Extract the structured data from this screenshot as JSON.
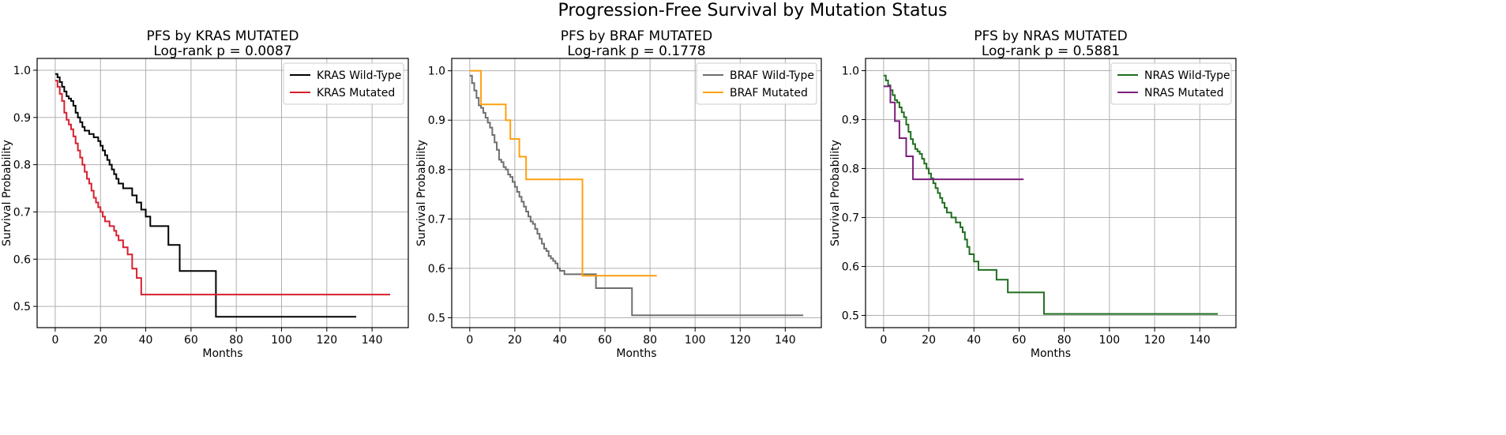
{
  "figure": {
    "suptitle": "Progression-Free Survival by Mutation Status"
  },
  "chart_data": [
    {
      "type": "line",
      "title": "PFS by KRAS MUTATED",
      "subtitle": "Log-rank p = 0.0087",
      "xlabel": "Months",
      "ylabel": "Survival Probability",
      "xlim": [
        -8,
        156
      ],
      "ylim": [
        0.455,
        1.025
      ],
      "xticks": [
        0,
        20,
        40,
        60,
        80,
        100,
        120,
        140
      ],
      "yticks": [
        0.5,
        0.6,
        0.7,
        0.8,
        0.9,
        1.0
      ],
      "ytick_labels": [
        "0.5",
        "0.6",
        "0.7",
        "0.8",
        "0.9",
        "1.0"
      ],
      "grid": true,
      "legend_position": "top-right",
      "series": [
        {
          "name": "KRAS Wild-Type",
          "color": "#000000",
          "x": [
            0,
            1,
            2,
            3,
            4,
            5,
            6,
            7,
            8,
            9,
            10,
            11,
            12,
            13,
            15,
            17,
            19,
            20,
            21,
            22,
            23,
            24,
            25,
            26,
            27,
            28,
            30,
            34,
            36,
            38,
            40,
            42,
            50,
            55,
            71,
            133
          ],
          "y": [
            0.992,
            0.985,
            0.975,
            0.965,
            0.955,
            0.945,
            0.94,
            0.935,
            0.925,
            0.91,
            0.9,
            0.89,
            0.88,
            0.872,
            0.865,
            0.858,
            0.85,
            0.84,
            0.83,
            0.82,
            0.81,
            0.8,
            0.79,
            0.78,
            0.77,
            0.76,
            0.75,
            0.735,
            0.72,
            0.705,
            0.69,
            0.67,
            0.63,
            0.575,
            0.478,
            0.478
          ]
        },
        {
          "name": "KRAS Mutated",
          "color": "#d6202f",
          "x": [
            0,
            1,
            2,
            3,
            4,
            5,
            6,
            7,
            8,
            9,
            10,
            11,
            12,
            13,
            14,
            15,
            16,
            17,
            18,
            19,
            20,
            21,
            22,
            24,
            26,
            27,
            28,
            30,
            32,
            34,
            36,
            38,
            148
          ],
          "y": [
            0.978,
            0.965,
            0.95,
            0.935,
            0.91,
            0.895,
            0.885,
            0.875,
            0.86,
            0.845,
            0.83,
            0.815,
            0.8,
            0.785,
            0.77,
            0.76,
            0.745,
            0.73,
            0.72,
            0.71,
            0.7,
            0.69,
            0.68,
            0.67,
            0.66,
            0.65,
            0.64,
            0.625,
            0.61,
            0.58,
            0.56,
            0.525,
            0.525
          ]
        }
      ]
    },
    {
      "type": "line",
      "title": "PFS by BRAF MUTATED",
      "subtitle": "Log-rank p = 0.1778",
      "xlabel": "Months",
      "ylabel": "Survival Probability",
      "xlim": [
        -8,
        156
      ],
      "ylim": [
        0.48,
        1.025
      ],
      "xticks": [
        0,
        20,
        40,
        60,
        80,
        100,
        120,
        140
      ],
      "yticks": [
        0.5,
        0.6,
        0.7,
        0.8,
        0.9,
        1.0
      ],
      "ytick_labels": [
        "0.5",
        "0.6",
        "0.7",
        "0.8",
        "0.9",
        "1.0"
      ],
      "grid": true,
      "legend_position": "top-right",
      "series": [
        {
          "name": "BRAF Wild-Type",
          "color": "#6e6e6e",
          "x": [
            0,
            1,
            2,
            3,
            4,
            5,
            6,
            7,
            8,
            9,
            10,
            11,
            12,
            13,
            14,
            15,
            16,
            17,
            18,
            19,
            20,
            21,
            22,
            23,
            24,
            25,
            26,
            27,
            28,
            29,
            30,
            31,
            32,
            33,
            34,
            35,
            36,
            37,
            38,
            39,
            40,
            42,
            50,
            56,
            72,
            148
          ],
          "y": [
            0.99,
            0.975,
            0.96,
            0.945,
            0.93,
            0.925,
            0.915,
            0.905,
            0.895,
            0.885,
            0.87,
            0.855,
            0.84,
            0.82,
            0.815,
            0.805,
            0.8,
            0.79,
            0.785,
            0.775,
            0.765,
            0.755,
            0.745,
            0.735,
            0.725,
            0.715,
            0.705,
            0.695,
            0.69,
            0.68,
            0.67,
            0.66,
            0.65,
            0.64,
            0.635,
            0.625,
            0.62,
            0.615,
            0.61,
            0.6,
            0.595,
            0.588,
            0.588,
            0.56,
            0.505,
            0.505
          ]
        },
        {
          "name": "BRAF Mutated",
          "color": "#ffa010",
          "x": [
            0,
            5,
            16,
            18,
            22,
            25,
            50,
            83
          ],
          "y": [
            1.0,
            0.932,
            0.9,
            0.862,
            0.826,
            0.78,
            0.585,
            0.585
          ]
        }
      ]
    },
    {
      "type": "line",
      "title": "PFS by NRAS MUTATED",
      "subtitle": "Log-rank p = 0.5881",
      "xlabel": "Months",
      "ylabel": "Survival Probability",
      "xlim": [
        -8,
        156
      ],
      "ylim": [
        0.475,
        1.025
      ],
      "xticks": [
        0,
        20,
        40,
        60,
        80,
        100,
        120,
        140
      ],
      "yticks": [
        0.5,
        0.6,
        0.7,
        0.8,
        0.9,
        1.0
      ],
      "ytick_labels": [
        "0.5",
        "0.6",
        "0.7",
        "0.8",
        "0.9",
        "1.0"
      ],
      "grid": true,
      "legend_position": "top-right",
      "series": [
        {
          "name": "NRAS Wild-Type",
          "color": "#1e6e1e",
          "x": [
            0,
            1,
            2,
            3,
            4,
            5,
            6,
            7,
            8,
            9,
            10,
            11,
            12,
            13,
            14,
            15,
            16,
            17,
            18,
            19,
            20,
            21,
            22,
            23,
            24,
            25,
            26,
            27,
            28,
            30,
            32,
            34,
            35,
            36,
            37,
            38,
            40,
            42,
            50,
            55,
            71,
            148
          ],
          "y": [
            0.99,
            0.98,
            0.97,
            0.96,
            0.95,
            0.94,
            0.935,
            0.925,
            0.915,
            0.905,
            0.89,
            0.875,
            0.86,
            0.85,
            0.84,
            0.835,
            0.83,
            0.82,
            0.81,
            0.8,
            0.79,
            0.78,
            0.77,
            0.76,
            0.75,
            0.74,
            0.73,
            0.72,
            0.71,
            0.7,
            0.69,
            0.68,
            0.67,
            0.655,
            0.64,
            0.625,
            0.61,
            0.593,
            0.573,
            0.547,
            0.503,
            0.503
          ]
        },
        {
          "name": "NRAS Mutated",
          "color": "#7b1f7b",
          "x": [
            0,
            3,
            5,
            7,
            10,
            13,
            62
          ],
          "y": [
            0.968,
            0.935,
            0.897,
            0.862,
            0.825,
            0.778,
            0.778
          ]
        }
      ]
    }
  ]
}
